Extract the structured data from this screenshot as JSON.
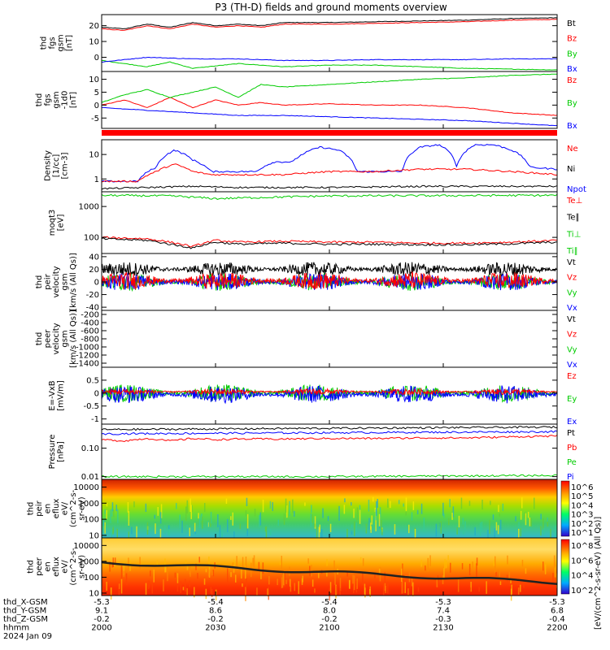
{
  "title": "P3 (TH-D) fields and ground moments overview",
  "colors": {
    "black": "#000000",
    "red": "#ff0000",
    "green": "#00cc00",
    "blue": "#0000ff"
  },
  "colorbar_label": "[eV/(cm^2-s-sr-eV)]",
  "colorbar_label2": "[eV/(cm^2-s-sr-eV) (All Qs)]",
  "chart_data": [
    {
      "type": "line",
      "id": "p1",
      "ylabel": [
        "thd",
        "fgs",
        "gsm",
        "[nT]"
      ],
      "yticks": [
        20,
        10,
        0
      ],
      "ylim": [
        -9,
        27
      ],
      "legend": [
        {
          "t": "Bt",
          "c": "black"
        },
        {
          "t": "Bz",
          "c": "red"
        },
        {
          "t": "By",
          "c": "green"
        },
        {
          "t": "Bx",
          "c": "blue"
        }
      ],
      "series": [
        {
          "name": "Bt",
          "color": "black",
          "x": [
            0,
            0.05,
            0.1,
            0.15,
            0.2,
            0.25,
            0.3,
            0.35,
            0.4,
            0.5,
            0.6,
            0.7,
            0.8,
            0.9,
            1
          ],
          "y": [
            19,
            18,
            21,
            19,
            22,
            20,
            21,
            20,
            22,
            22,
            22.5,
            23,
            23.5,
            24.5,
            25
          ]
        },
        {
          "name": "Bz",
          "color": "red",
          "x": [
            0,
            0.05,
            0.1,
            0.15,
            0.2,
            0.25,
            0.3,
            0.35,
            0.4,
            0.5,
            0.6,
            0.7,
            0.8,
            0.9,
            1
          ],
          "y": [
            18,
            17,
            20,
            18,
            21,
            19,
            20,
            19,
            21,
            21,
            21.5,
            22,
            22.5,
            23.5,
            24
          ]
        },
        {
          "name": "By",
          "color": "green",
          "x": [
            0,
            0.1,
            0.15,
            0.2,
            0.3,
            0.4,
            0.5,
            0.6,
            0.7,
            0.8,
            0.9,
            1
          ],
          "y": [
            -2,
            -6,
            -3,
            -7,
            -4,
            -6,
            -5,
            -5,
            -6,
            -7,
            -7.5,
            -8
          ]
        },
        {
          "name": "Bx",
          "color": "blue",
          "x": [
            0,
            0.1,
            0.2,
            0.3,
            0.4,
            0.5,
            0.6,
            0.7,
            0.8,
            0.9,
            1
          ],
          "y": [
            -3,
            0,
            -1,
            -1,
            -2,
            -2,
            -1.5,
            -1.5,
            -1.5,
            -1,
            -1
          ]
        }
      ]
    },
    {
      "type": "line",
      "id": "p2",
      "ylabel": [
        "thd",
        "fgs",
        "gsm",
        "-1d0",
        "[nT]"
      ],
      "yticks": [
        10,
        5,
        0,
        -5
      ],
      "ylim": [
        -9,
        13
      ],
      "legend": [
        {
          "t": "Bz",
          "c": "red"
        },
        {
          "t": "By",
          "c": "green"
        },
        {
          "t": "Bx",
          "c": "blue"
        }
      ],
      "series": [
        {
          "name": "Bz",
          "color": "red",
          "x": [
            0,
            0.05,
            0.1,
            0.15,
            0.2,
            0.25,
            0.3,
            0.35,
            0.4,
            0.5,
            0.6,
            0.7,
            0.8,
            0.9,
            1
          ],
          "y": [
            0,
            2,
            -1,
            3,
            -1,
            2,
            0,
            1,
            0,
            0.5,
            0,
            0,
            -1,
            -3,
            -4
          ]
        },
        {
          "name": "By",
          "color": "green",
          "x": [
            0,
            0.05,
            0.1,
            0.15,
            0.2,
            0.25,
            0.3,
            0.35,
            0.4,
            0.5,
            0.6,
            0.7,
            0.8,
            0.9,
            1
          ],
          "y": [
            1,
            4,
            6,
            3,
            5,
            7,
            3,
            8,
            7,
            8,
            9,
            10,
            10.5,
            11.5,
            12
          ]
        },
        {
          "name": "Bx",
          "color": "blue",
          "x": [
            0,
            0.1,
            0.2,
            0.3,
            0.4,
            0.5,
            0.6,
            0.7,
            0.8,
            0.9,
            1
          ],
          "y": [
            -1,
            -2,
            -3,
            -4,
            -4,
            -4.5,
            -5,
            -5.5,
            -6,
            -7,
            -8
          ]
        }
      ]
    },
    {
      "type": "line",
      "id": "p3",
      "log": true,
      "ylabel": [
        "Density",
        "[1/cc]",
        "[cm-3]"
      ],
      "yticks": [
        10,
        1
      ],
      "ylim": [
        0.3,
        40
      ],
      "legend": [
        {
          "t": "Ne",
          "c": "red"
        },
        {
          "t": "Ni",
          "c": "black"
        },
        {
          "t": "Npot",
          "c": "blue"
        }
      ],
      "series": [
        {
          "name": "Npot",
          "color": "blue",
          "x": [
            0,
            0.08,
            0.12,
            0.16,
            0.2,
            0.24,
            0.3,
            0.34,
            0.38,
            0.42,
            0.48,
            0.52,
            0.56,
            0.6,
            0.66,
            0.7,
            0.74,
            0.78,
            0.82,
            0.86,
            0.9,
            0.94,
            1
          ],
          "y": [
            0.8,
            0.8,
            3,
            15,
            6,
            2,
            2,
            2,
            5,
            5,
            20,
            15,
            2,
            2,
            2,
            20,
            25,
            3,
            25,
            25,
            15,
            3,
            2.5
          ]
        },
        {
          "name": "Ne",
          "color": "red",
          "x": [
            0,
            0.08,
            0.12,
            0.16,
            0.2,
            0.24,
            0.3,
            0.4,
            0.5,
            0.6,
            0.7,
            0.8,
            0.9,
            1
          ],
          "y": [
            0.8,
            0.8,
            2,
            4,
            2,
            1.5,
            1.5,
            1.5,
            2,
            2,
            2.5,
            2.5,
            2,
            1.5
          ]
        },
        {
          "name": "Ni",
          "color": "black",
          "x": [
            0,
            0.1,
            0.2,
            0.3,
            0.5,
            0.7,
            1
          ],
          "y": [
            0.4,
            0.45,
            0.5,
            0.45,
            0.45,
            0.5,
            0.5
          ]
        }
      ]
    },
    {
      "type": "line",
      "id": "p4",
      "log": true,
      "ylabel": [
        "moqt3",
        "[eV]"
      ],
      "yticks": [
        1000,
        100
      ],
      "ylim": [
        30,
        3000
      ],
      "legend": [
        {
          "t": "Te⊥",
          "c": "red"
        },
        {
          "t": "Te∥",
          "c": "black"
        },
        {
          "t": "Ti⊥",
          "c": "green"
        },
        {
          "t": "Ti∥",
          "c": "green"
        }
      ],
      "series": [
        {
          "name": "Ti",
          "color": "green",
          "x": [
            0,
            0.15,
            0.25,
            0.5,
            1
          ],
          "y": [
            2300,
            2200,
            1800,
            2200,
            2300
          ]
        },
        {
          "name": "Te_perp",
          "color": "red",
          "x": [
            0,
            0.1,
            0.15,
            0.2,
            0.25,
            0.3,
            0.4,
            0.5,
            0.6,
            0.7,
            0.8,
            0.9,
            1
          ],
          "y": [
            100,
            90,
            70,
            50,
            80,
            70,
            75,
            70,
            70,
            65,
            65,
            70,
            80
          ]
        },
        {
          "name": "Te_par",
          "color": "black",
          "x": [
            0,
            0.1,
            0.15,
            0.2,
            0.25,
            0.3,
            0.4,
            0.5,
            0.6,
            0.7,
            0.8,
            0.9,
            1
          ],
          "y": [
            90,
            80,
            60,
            45,
            70,
            60,
            65,
            60,
            60,
            58,
            58,
            62,
            70
          ]
        }
      ]
    },
    {
      "type": "line",
      "id": "p5",
      "noisy": true,
      "ylabel": [
        "thd",
        "peir",
        "velocity",
        "gsm",
        "[km/s (All Qs)]"
      ],
      "yticks": [
        40,
        20,
        0,
        -20,
        -40
      ],
      "ylim": [
        -45,
        45
      ],
      "legend": [
        {
          "t": "Vt",
          "c": "black"
        },
        {
          "t": "Vz",
          "c": "red"
        },
        {
          "t": "Vy",
          "c": "green"
        },
        {
          "t": "Vx",
          "c": "blue"
        }
      ],
      "series": [
        {
          "name": "Vt",
          "color": "black",
          "x": [
            0,
            1
          ],
          "y": [
            20,
            20
          ]
        },
        {
          "name": "Vy",
          "color": "green",
          "x": [
            0,
            1
          ],
          "y": [
            0,
            0
          ]
        },
        {
          "name": "Vx",
          "color": "blue",
          "x": [
            0,
            1
          ],
          "y": [
            0,
            0
          ]
        },
        {
          "name": "Vz",
          "color": "red",
          "x": [
            0,
            1
          ],
          "y": [
            2,
            2
          ]
        }
      ]
    },
    {
      "type": "line",
      "id": "p6",
      "ylabel": [
        "thd",
        "peer",
        "velocity",
        "gsm",
        "[km/s (All Qs)]"
      ],
      "yticks": [
        -200,
        -400,
        -600,
        -800,
        -1000,
        -1200,
        -1400
      ],
      "ylim": [
        -1500,
        -100
      ],
      "legend": [
        {
          "t": "Vt",
          "c": "black"
        },
        {
          "t": "Vz",
          "c": "red"
        },
        {
          "t": "Vy",
          "c": "green"
        },
        {
          "t": "Vx",
          "c": "blue"
        }
      ],
      "series": []
    },
    {
      "type": "line",
      "id": "p7",
      "noisy": true,
      "ylabel": [
        "E=-VxB",
        "[mV/m]"
      ],
      "yticks": [
        0.5,
        0.0,
        -0.5,
        -1.0
      ],
      "ylim": [
        -1.2,
        1.0
      ],
      "legend": [
        {
          "t": "Ez",
          "c": "red"
        },
        {
          "t": "Ey",
          "c": "green"
        },
        {
          "t": "Ex",
          "c": "blue"
        }
      ],
      "series": [
        {
          "name": "Ey",
          "color": "green",
          "x": [
            0,
            1
          ],
          "y": [
            0,
            0
          ]
        },
        {
          "name": "Ex",
          "color": "blue",
          "x": [
            0,
            1
          ],
          "y": [
            -0.05,
            -0.05
          ]
        },
        {
          "name": "Ez",
          "color": "red",
          "x": [
            0,
            1
          ],
          "y": [
            0.05,
            0.05
          ]
        }
      ]
    },
    {
      "type": "line",
      "id": "p8",
      "log": true,
      "ylabel": [
        "Pressure",
        "[nPa]"
      ],
      "yticks": [
        0.1,
        0.01
      ],
      "ytickLabels": [
        "0.10",
        "0.01"
      ],
      "ylim": [
        0.008,
        0.7
      ],
      "legend": [
        {
          "t": "Pt",
          "c": "black"
        },
        {
          "t": "Pb",
          "c": "red"
        },
        {
          "t": "Pe",
          "c": "green"
        },
        {
          "t": "Pi",
          "c": "blue"
        }
      ],
      "series": [
        {
          "name": "Pt",
          "color": "black",
          "x": [
            0,
            0.5,
            1
          ],
          "y": [
            0.45,
            0.5,
            0.55
          ]
        },
        {
          "name": "Pi",
          "color": "blue",
          "x": [
            0,
            0.5,
            1
          ],
          "y": [
            0.32,
            0.35,
            0.38
          ]
        },
        {
          "name": "Pb",
          "color": "red",
          "x": [
            0,
            0.05,
            0.1,
            0.15,
            0.2,
            0.25,
            0.3,
            0.4,
            0.5,
            0.6,
            0.7,
            0.8,
            0.9,
            1
          ],
          "y": [
            0.2,
            0.18,
            0.22,
            0.18,
            0.22,
            0.2,
            0.21,
            0.21,
            0.22,
            0.22,
            0.23,
            0.23,
            0.25,
            0.27
          ]
        },
        {
          "name": "Pe",
          "color": "green",
          "x": [
            0,
            0.5,
            1
          ],
          "y": [
            0.01,
            0.01,
            0.011
          ]
        }
      ]
    },
    {
      "type": "heatmap",
      "id": "p9",
      "log": true,
      "ylabel": [
        "thd",
        "peir",
        "en",
        "eflux",
        "eV/",
        "(cm^2-s-",
        "sr-eV)"
      ],
      "yticks": [
        10000,
        1000,
        100,
        10
      ],
      "ylim": [
        7,
        30000
      ],
      "colorbar_ticks": [
        "10^6",
        "10^5",
        "10^4",
        "10^3",
        "10^2",
        "10^1"
      ]
    },
    {
      "type": "heatmap",
      "id": "p10",
      "log": true,
      "ylabel": [
        "thd",
        "peer",
        "en",
        "eflux",
        "eV/",
        "(cm^2-s-",
        "sr-eV)"
      ],
      "yticks": [
        10000,
        1000,
        100,
        10
      ],
      "ylim": [
        7,
        30000
      ],
      "colorbar_ticks": [
        "10^8",
        "10^6",
        "10^4",
        "10^2"
      ]
    }
  ],
  "xaxis": {
    "rows": [
      {
        "label": "thd_X-GSM",
        "values": [
          "-5.3",
          "-5.4",
          "-5.4",
          "-5.3",
          "-5.3"
        ]
      },
      {
        "label": "thd_Y-GSM",
        "values": [
          "9.1",
          "8.6",
          "8.0",
          "7.4",
          "6.8"
        ]
      },
      {
        "label": "thd_Z-GSM",
        "values": [
          "-0.2",
          "-0.2",
          "-0.2",
          "-0.3",
          "-0.4"
        ]
      },
      {
        "label": "hhmm",
        "values": [
          "2000",
          "2030",
          "2100",
          "2130",
          "2200"
        ]
      },
      {
        "label": "2024 Jan 09",
        "values": [
          "",
          "",
          "",
          "",
          ""
        ]
      }
    ]
  }
}
